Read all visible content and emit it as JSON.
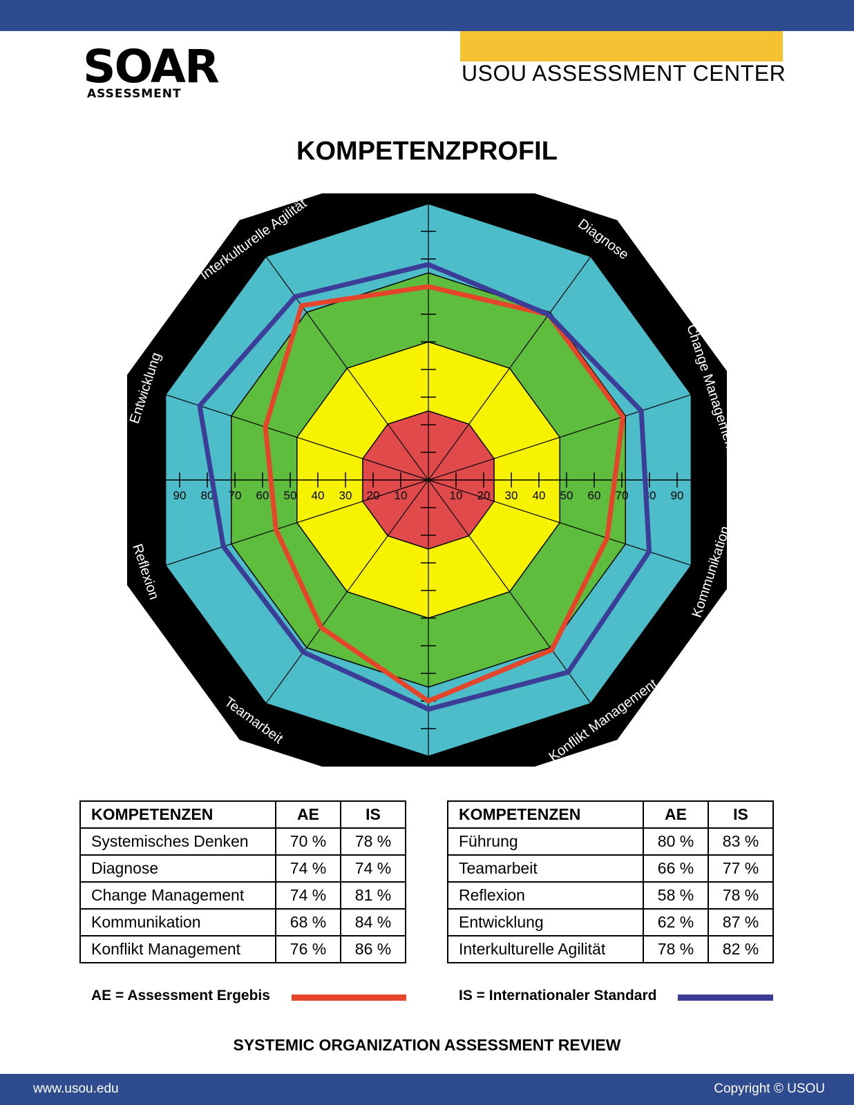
{
  "header": {
    "logo_word": "SOAR",
    "logo_sub": "ASSESSMENT",
    "center_name": "USOU ASSESSMENT CENTER",
    "accent_color": "#f4c233",
    "bar_color": "#2f4b8f"
  },
  "title": "KOMPETENZPROFIL",
  "chart_data": {
    "type": "radar",
    "axes": [
      "Systemisches Denken",
      "Diagnose",
      "Change Management",
      "Kommunikation",
      "Konflikt Management",
      "Führung",
      "Teamarbeit",
      "Reflexion",
      "Entwicklung",
      "Interkulturelle Agilität"
    ],
    "tick_labels": [
      "10",
      "20",
      "30",
      "40",
      "50",
      "60",
      "70",
      "80",
      "90"
    ],
    "range": [
      0,
      100
    ],
    "zones": [
      {
        "max": 25,
        "color": "#e04a4a"
      },
      {
        "max": 50,
        "color": "#f7f200"
      },
      {
        "max": 75,
        "color": "#5fbd3d"
      },
      {
        "max": 100,
        "color": "#4ebdca"
      }
    ],
    "frame_color": "#000000",
    "series": [
      {
        "name": "AE",
        "color": "#e5452b",
        "values": [
          70,
          74,
          74,
          68,
          76,
          80,
          66,
          58,
          62,
          78
        ]
      },
      {
        "name": "IS",
        "color": "#3b3d96",
        "values": [
          78,
          74,
          81,
          84,
          86,
          83,
          77,
          78,
          87,
          82
        ]
      }
    ]
  },
  "tables": {
    "header": {
      "name": "KOMPETENZEN",
      "ae": "AE",
      "is": "IS"
    },
    "left": [
      {
        "name": "Systemisches Denken",
        "ae": "70 %",
        "is": "78 %"
      },
      {
        "name": "Diagnose",
        "ae": "74 %",
        "is": "74 %"
      },
      {
        "name": "Change Management",
        "ae": "74 %",
        "is": "81 %"
      },
      {
        "name": "Kommunikation",
        "ae": "68 %",
        "is": "84 %"
      },
      {
        "name": "Konflikt Management",
        "ae": "76 %",
        "is": "86 %"
      }
    ],
    "right": [
      {
        "name": "Führung",
        "ae": "80 %",
        "is": "83 %"
      },
      {
        "name": "Teamarbeit",
        "ae": "66 %",
        "is": "77 %"
      },
      {
        "name": "Reflexion",
        "ae": "58 %",
        "is": "78 %"
      },
      {
        "name": "Entwicklung",
        "ae": "62 %",
        "is": "87 %"
      },
      {
        "name": "Interkulturelle Agilität",
        "ae": "78 %",
        "is": "82 %"
      }
    ]
  },
  "legend": {
    "ae": "AE = Assessment Ergebis",
    "is": "IS = Internationaler Standard"
  },
  "bottom_title": "SYSTEMIC ORGANIZATION ASSESSMENT REVIEW",
  "footer": {
    "left": "www.usou.edu",
    "right": "Copyright © USOU"
  }
}
